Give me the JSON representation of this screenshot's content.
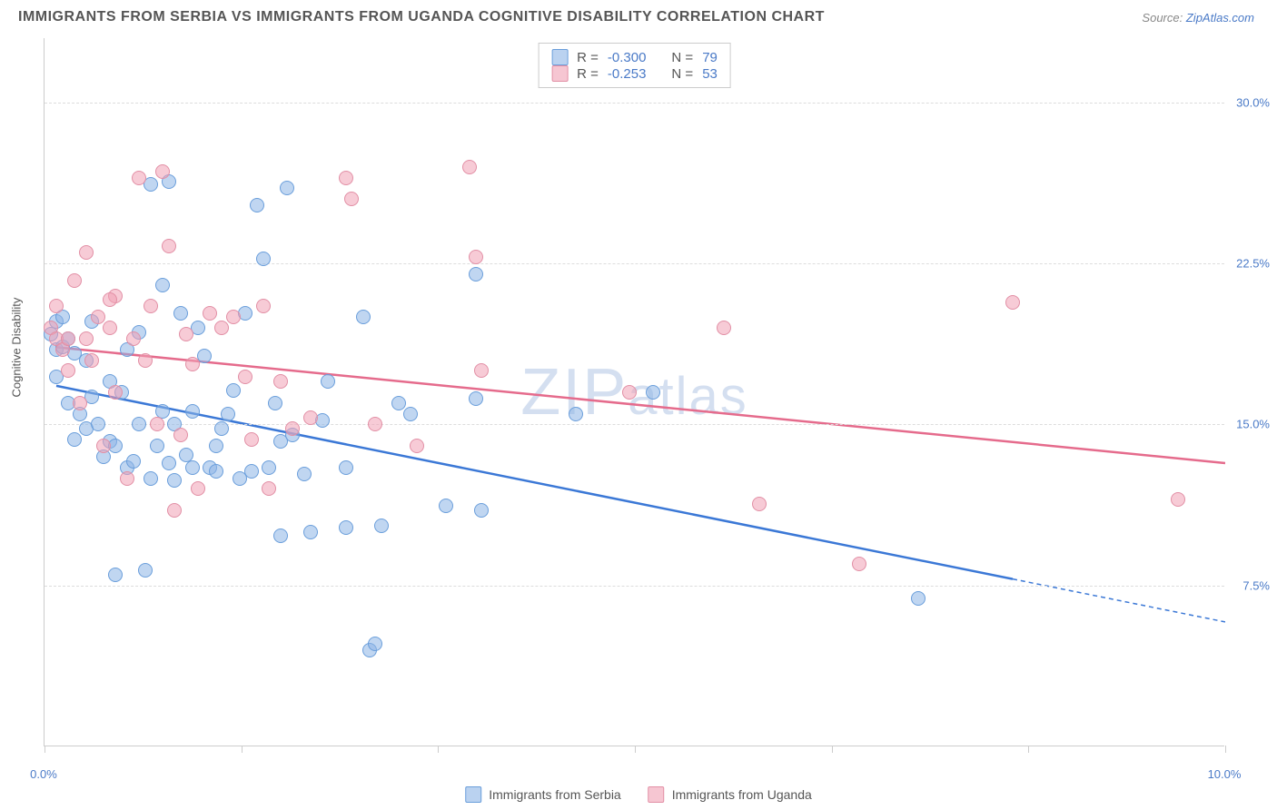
{
  "title": "IMMIGRANTS FROM SERBIA VS IMMIGRANTS FROM UGANDA COGNITIVE DISABILITY CORRELATION CHART",
  "source_label": "Source:",
  "source_value": "ZipAtlas.com",
  "y_axis_label": "Cognitive Disability",
  "watermark": {
    "pre": "ZIP",
    "post": "atlas"
  },
  "chart": {
    "type": "scatter",
    "xlim": [
      0,
      10
    ],
    "ylim": [
      0,
      33
    ],
    "y_ticks": [
      7.5,
      15.0,
      22.5,
      30.0
    ],
    "y_tick_labels": [
      "7.5%",
      "15.0%",
      "22.5%",
      "30.0%"
    ],
    "x_ticks": [
      0,
      1.67,
      3.33,
      5.0,
      6.67,
      8.33,
      10
    ],
    "x_tick_labels": {
      "left": "0.0%",
      "right": "10.0%"
    },
    "background_color": "#ffffff",
    "grid_color": "#dddddd",
    "axis_color": "#cccccc",
    "label_color": "#4a7ac7",
    "marker_size": 16,
    "series": [
      {
        "name": "Immigrants from Serbia",
        "color_fill": "rgba(140,180,230,0.55)",
        "color_stroke": "#6a9edb",
        "line_color": "#3b78d6",
        "R": "-0.300",
        "N": "79",
        "trend": {
          "x1": 0.1,
          "y1": 16.8,
          "x2": 8.2,
          "y2": 7.8,
          "extend_x2": 10.0,
          "extend_y2": 5.8
        },
        "points": [
          [
            0.05,
            19.2
          ],
          [
            0.1,
            18.5
          ],
          [
            0.1,
            19.8
          ],
          [
            0.1,
            17.2
          ],
          [
            0.15,
            20.0
          ],
          [
            0.15,
            18.6
          ],
          [
            0.2,
            16.0
          ],
          [
            0.2,
            19.0
          ],
          [
            0.25,
            18.3
          ],
          [
            0.25,
            14.3
          ],
          [
            0.3,
            15.5
          ],
          [
            0.35,
            18.0
          ],
          [
            0.35,
            14.8
          ],
          [
            0.4,
            16.3
          ],
          [
            0.4,
            19.8
          ],
          [
            0.45,
            15.0
          ],
          [
            0.5,
            13.5
          ],
          [
            0.55,
            14.2
          ],
          [
            0.55,
            17.0
          ],
          [
            0.6,
            8.0
          ],
          [
            0.65,
            16.5
          ],
          [
            0.7,
            13.0
          ],
          [
            0.75,
            13.3
          ],
          [
            0.8,
            19.3
          ],
          [
            0.8,
            15.0
          ],
          [
            0.85,
            8.2
          ],
          [
            0.9,
            26.2
          ],
          [
            0.9,
            12.5
          ],
          [
            0.95,
            14.0
          ],
          [
            1.0,
            21.5
          ],
          [
            1.0,
            15.6
          ],
          [
            1.05,
            26.3
          ],
          [
            1.1,
            15.0
          ],
          [
            1.1,
            12.4
          ],
          [
            1.15,
            20.2
          ],
          [
            1.2,
            13.6
          ],
          [
            1.25,
            15.6
          ],
          [
            1.25,
            13.0
          ],
          [
            1.3,
            19.5
          ],
          [
            1.35,
            18.2
          ],
          [
            1.4,
            13.0
          ],
          [
            1.45,
            12.8
          ],
          [
            1.5,
            14.8
          ],
          [
            1.55,
            15.5
          ],
          [
            1.6,
            16.6
          ],
          [
            1.65,
            12.5
          ],
          [
            1.7,
            20.2
          ],
          [
            1.75,
            12.8
          ],
          [
            1.8,
            25.2
          ],
          [
            1.85,
            22.7
          ],
          [
            1.9,
            13.0
          ],
          [
            1.95,
            16.0
          ],
          [
            2.0,
            9.8
          ],
          [
            2.05,
            26.0
          ],
          [
            2.1,
            14.5
          ],
          [
            2.2,
            12.7
          ],
          [
            2.25,
            10.0
          ],
          [
            2.35,
            15.2
          ],
          [
            2.4,
            17.0
          ],
          [
            2.55,
            10.2
          ],
          [
            2.55,
            13.0
          ],
          [
            2.7,
            20.0
          ],
          [
            2.75,
            4.5
          ],
          [
            2.8,
            4.8
          ],
          [
            2.85,
            10.3
          ],
          [
            3.0,
            16.0
          ],
          [
            3.1,
            15.5
          ],
          [
            3.4,
            11.2
          ],
          [
            3.65,
            22.0
          ],
          [
            3.65,
            16.2
          ],
          [
            3.7,
            11.0
          ],
          [
            4.5,
            15.5
          ],
          [
            5.15,
            16.5
          ],
          [
            7.4,
            6.9
          ],
          [
            0.6,
            14.0
          ],
          [
            0.7,
            18.5
          ],
          [
            1.05,
            13.2
          ],
          [
            1.45,
            14.0
          ],
          [
            2.0,
            14.2
          ]
        ]
      },
      {
        "name": "Immigrants from Uganda",
        "color_fill": "rgba(240,160,180,0.55)",
        "color_stroke": "#e28fa5",
        "line_color": "#e56b8c",
        "R": "-0.253",
        "N": "53",
        "trend": {
          "x1": 0.1,
          "y1": 18.6,
          "x2": 10.0,
          "y2": 13.2
        },
        "points": [
          [
            0.05,
            19.5
          ],
          [
            0.1,
            19.0
          ],
          [
            0.1,
            20.5
          ],
          [
            0.15,
            18.5
          ],
          [
            0.2,
            19.0
          ],
          [
            0.2,
            17.5
          ],
          [
            0.25,
            21.7
          ],
          [
            0.3,
            16.0
          ],
          [
            0.35,
            23.0
          ],
          [
            0.35,
            19.0
          ],
          [
            0.4,
            18.0
          ],
          [
            0.45,
            20.0
          ],
          [
            0.5,
            14.0
          ],
          [
            0.55,
            19.5
          ],
          [
            0.6,
            21.0
          ],
          [
            0.6,
            16.5
          ],
          [
            0.7,
            12.5
          ],
          [
            0.75,
            19.0
          ],
          [
            0.8,
            26.5
          ],
          [
            0.85,
            18.0
          ],
          [
            0.9,
            20.5
          ],
          [
            0.95,
            15.0
          ],
          [
            1.0,
            26.8
          ],
          [
            1.05,
            23.3
          ],
          [
            1.1,
            11.0
          ],
          [
            1.2,
            19.2
          ],
          [
            1.25,
            17.8
          ],
          [
            1.3,
            12.0
          ],
          [
            1.4,
            20.2
          ],
          [
            1.5,
            19.5
          ],
          [
            1.6,
            20.0
          ],
          [
            1.7,
            17.2
          ],
          [
            1.75,
            14.3
          ],
          [
            1.85,
            20.5
          ],
          [
            1.9,
            12.0
          ],
          [
            2.0,
            17.0
          ],
          [
            2.1,
            14.8
          ],
          [
            2.55,
            26.5
          ],
          [
            2.6,
            25.5
          ],
          [
            2.8,
            15.0
          ],
          [
            3.15,
            14.0
          ],
          [
            3.6,
            27.0
          ],
          [
            3.7,
            17.5
          ],
          [
            3.65,
            22.8
          ],
          [
            4.95,
            16.5
          ],
          [
            5.75,
            19.5
          ],
          [
            6.05,
            11.3
          ],
          [
            6.9,
            8.5
          ],
          [
            8.2,
            20.7
          ],
          [
            9.6,
            11.5
          ],
          [
            0.55,
            20.8
          ],
          [
            1.15,
            14.5
          ],
          [
            2.25,
            15.3
          ]
        ]
      }
    ]
  },
  "legend_bottom_labels": {
    "a": "Immigrants from Serbia",
    "b": "Immigrants from Uganda"
  },
  "legend_top_labels": {
    "R": "R =",
    "N": "N ="
  }
}
